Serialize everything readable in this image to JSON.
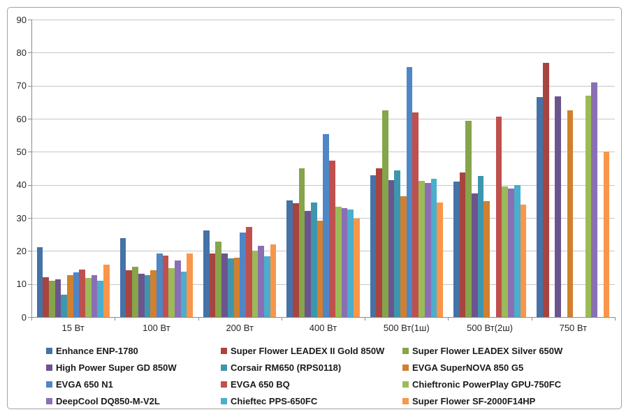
{
  "chart_data": {
    "type": "bar",
    "title": "",
    "xlabel": "",
    "ylabel": "",
    "categories": [
      "15 Вт",
      "100 Вт",
      "200 Вт",
      "400 Вт",
      "500 Вт(1ш)",
      "500 Вт(2ш)",
      "750 Вт"
    ],
    "series": [
      {
        "name": "Enhance ENP-1780",
        "color": "#4572A7",
        "values": [
          21.2,
          23.8,
          26.1,
          35.3,
          42.8,
          41.0,
          66.5
        ]
      },
      {
        "name": "Super Flower LEADEX II Gold 850W",
        "color": "#A8443F",
        "values": [
          12.1,
          14.2,
          19.2,
          34.5,
          45.0,
          43.8,
          76.8
        ]
      },
      {
        "name": "Super Flower LEADEX Silver 650W",
        "color": "#86A44A",
        "values": [
          11.0,
          15.2,
          22.8,
          45.0,
          62.5,
          59.3,
          null
        ]
      },
      {
        "name": "High Power Super GD 850W",
        "color": "#6C548E",
        "values": [
          11.4,
          13.1,
          19.2,
          32.1,
          41.5,
          37.5,
          66.8
        ]
      },
      {
        "name": "Corsair RM650 (RPS0118)",
        "color": "#3D96AE",
        "values": [
          6.8,
          12.7,
          17.8,
          34.6,
          44.4,
          42.7,
          null
        ]
      },
      {
        "name": "EVGA SuperNOVA 850 G5",
        "color": "#D1802F",
        "values": [
          12.7,
          14.2,
          18.0,
          29.2,
          36.6,
          35.1,
          62.5
        ]
      },
      {
        "name": "EVGA 650 N1",
        "color": "#4E86C6",
        "values": [
          13.5,
          19.2,
          25.6,
          55.4,
          75.6,
          null,
          null
        ]
      },
      {
        "name": "EVGA 650 BQ",
        "color": "#C0504D",
        "values": [
          14.4,
          18.6,
          27.3,
          47.3,
          62.0,
          60.7,
          null
        ]
      },
      {
        "name": "Chieftronic PowerPlay GPU-750FC",
        "color": "#9BBB59",
        "values": [
          11.8,
          14.8,
          20.1,
          33.4,
          41.2,
          39.5,
          67.0
        ]
      },
      {
        "name": "DeepCool DQ850-M-V2L",
        "color": "#8A6FB4",
        "values": [
          12.7,
          17.1,
          21.6,
          33.0,
          40.6,
          38.9,
          71.0
        ]
      },
      {
        "name": "Chieftec PPS-650FC",
        "color": "#4AAECC",
        "values": [
          11.0,
          13.7,
          18.4,
          32.6,
          41.9,
          40.0,
          null
        ]
      },
      {
        "name": "Super Flower SF-2000F14HP",
        "color": "#F9964A",
        "values": [
          15.9,
          19.2,
          22.0,
          29.8,
          34.7,
          34.0,
          50.0
        ]
      }
    ],
    "ylim": [
      0,
      90
    ],
    "ytick_step": 10,
    "ytick_labels": [
      "0",
      "10",
      "20",
      "30",
      "40",
      "50",
      "60",
      "70",
      "80",
      "90"
    ],
    "grid": true,
    "legend_position": "bottom",
    "legend_columns": 3,
    "legend_order": "row-major"
  }
}
